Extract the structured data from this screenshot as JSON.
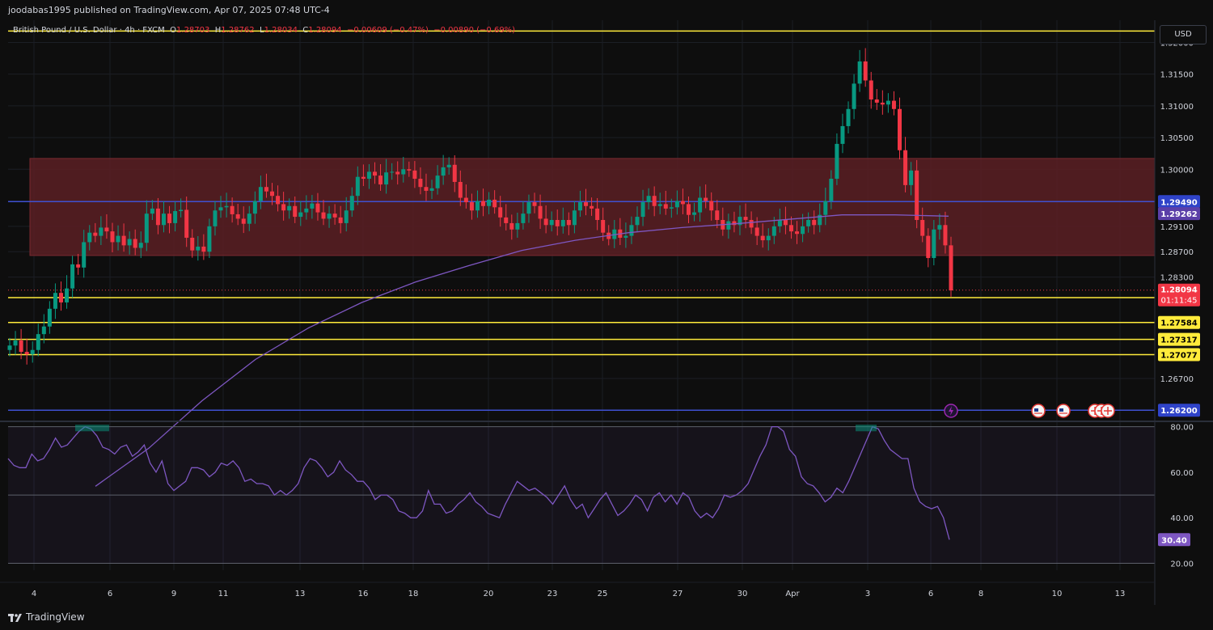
{
  "header": {
    "published_by": "joodabas1995 published on TradingView.com, Apr 07, 2025 07:48 UTC-4"
  },
  "legend": {
    "symbol": "British Pound / U.S. Dollar · 4h · FXCM",
    "open_label": "O",
    "open": "1.28703",
    "high_label": "H",
    "high": "1.28762",
    "low_label": "L",
    "low": "1.28034",
    "close_label": "C",
    "close": "1.28094",
    "change": "−0.00609 (−0.47%)",
    "change2": "−0.00890 (−0.69%)"
  },
  "currency_button": "USD",
  "footer": {
    "brand": "TradingView"
  },
  "colors": {
    "background": "#0e0e0e",
    "up": "#089981",
    "down": "#f23645",
    "zone": "#5a1f23",
    "level": "#ffeb3b",
    "blue_line": "#3f51d1",
    "ma": "#7e57c2",
    "rsi": "#7e57c2"
  },
  "chart_data": {
    "type": "candlestick",
    "symbol": "British Pound / U.S. Dollar",
    "timeframe": "4h",
    "x_ticks": [
      "4",
      "6",
      "9",
      "11",
      "13",
      "16",
      "18",
      "20",
      "23",
      "25",
      "27",
      "30",
      "Apr",
      "3",
      "6",
      "8",
      "10",
      "13"
    ],
    "y_ticks": [
      "1.32000",
      "1.31500",
      "1.31000",
      "1.30500",
      "1.30000",
      "1.29100",
      "1.28700",
      "1.28300",
      "1.26700"
    ],
    "ylim": [
      1.2605,
      1.3235
    ],
    "zone": {
      "from": 1.2864,
      "to": 1.3017
    },
    "horizontal_levels": [
      {
        "value": 1.2949,
        "label": "1.29490",
        "kind": "blue"
      },
      {
        "value": 1.262,
        "label": "1.26200",
        "kind": "blue"
      },
      {
        "value": 1.27976,
        "label": "1.27976",
        "kind": "yellow"
      },
      {
        "value": 1.27584,
        "label": "1.27584",
        "kind": "yellow"
      },
      {
        "value": 1.27317,
        "label": "1.27317",
        "kind": "yellow"
      },
      {
        "value": 1.27077,
        "label": "1.27077",
        "kind": "yellow"
      },
      {
        "value": 1.3218,
        "label": "",
        "kind": "yellow"
      }
    ],
    "price_labels": {
      "ma": "1.29262",
      "last": "1.28094",
      "countdown": "01:11:45"
    },
    "closes": [
      1.2722,
      1.273,
      1.2712,
      1.2708,
      1.2715,
      1.274,
      1.2752,
      1.278,
      1.2805,
      1.279,
      1.2812,
      1.285,
      1.2845,
      1.2885,
      1.29,
      1.2895,
      1.2908,
      1.2902,
      1.2885,
      1.2895,
      1.288,
      1.289,
      1.2876,
      1.2884,
      1.293,
      1.2938,
      1.2912,
      1.293,
      1.2915,
      1.2934,
      1.2936,
      1.2892,
      1.2872,
      1.2878,
      1.287,
      1.291,
      1.2935,
      1.294,
      1.2942,
      1.2929,
      1.2922,
      1.2914,
      1.293,
      1.295,
      1.2972,
      1.2965,
      1.2958,
      1.2945,
      1.2935,
      1.2942,
      1.2925,
      1.2932,
      1.2938,
      1.2946,
      1.2932,
      1.2922,
      1.293,
      1.2924,
      1.2915,
      1.2935,
      1.2958,
      1.2988,
      1.2985,
      1.2996,
      1.299,
      1.2976,
      1.2995,
      1.2996,
      1.2992,
      1.3,
      1.2998,
      1.2985,
      1.2972,
      1.2966,
      1.297,
      1.299,
      1.3003,
      1.3007,
      1.298,
      1.2955,
      1.2948,
      1.2935,
      1.295,
      1.2942,
      1.2952,
      1.294,
      1.2924,
      1.2915,
      1.2905,
      1.2915,
      1.293,
      1.2948,
      1.2942,
      1.2922,
      1.2912,
      1.292,
      1.291,
      1.292,
      1.2912,
      1.2935,
      1.2948,
      1.2942,
      1.2938,
      1.292,
      1.29,
      1.289,
      1.2905,
      1.2892,
      1.2895,
      1.2912,
      1.2925,
      1.2948,
      1.2958,
      1.2942,
      1.2945,
      1.2938,
      1.294,
      1.295,
      1.2945,
      1.2928,
      1.2932,
      1.2955,
      1.295,
      1.2935,
      1.292,
      1.2905,
      1.2918,
      1.2912,
      1.2925,
      1.292,
      1.2908,
      1.2895,
      1.2888,
      1.2895,
      1.291,
      1.292,
      1.2912,
      1.2902,
      1.2898,
      1.291,
      1.292,
      1.2912,
      1.2928,
      1.295,
      1.2985,
      1.304,
      1.3068,
      1.3095,
      1.3135,
      1.317,
      1.314,
      1.311,
      1.3105,
      1.3102,
      1.3108,
      1.3095,
      1.303,
      1.2975,
      1.2998,
      1.292,
      1.2895,
      1.286,
      1.2905,
      1.2912,
      1.288,
      1.2809
    ],
    "ma_values": [
      1.25,
      1.256,
      1.2635,
      1.27,
      1.275,
      1.279,
      1.2822,
      1.2848,
      1.2872,
      1.2888,
      1.29,
      1.2908,
      1.2914,
      1.2921,
      1.2928,
      1.2928,
      1.2926
    ],
    "rsi": {
      "levels": [
        80,
        50
      ],
      "y_ticks": [
        "80.00",
        "60.00",
        "40.00",
        "20.00"
      ],
      "ylim": [
        17,
        82
      ],
      "last": "30.40",
      "values": [
        66,
        63,
        62,
        62,
        68,
        65,
        66,
        70,
        75,
        71,
        72,
        75,
        78,
        80,
        79,
        76,
        71,
        70,
        68,
        71,
        72,
        67,
        69,
        72,
        64,
        60,
        65,
        55,
        52,
        54,
        56,
        62,
        62,
        61,
        58,
        60,
        64,
        63,
        65,
        62,
        56,
        57,
        55,
        55,
        54,
        50,
        52,
        50,
        52,
        55,
        62,
        66,
        65,
        62,
        58,
        60,
        65,
        61,
        59,
        56,
        56,
        53,
        48,
        50,
        50,
        48,
        43,
        42,
        40,
        40,
        43,
        52,
        46,
        46,
        42,
        43,
        46,
        48,
        51,
        47,
        45,
        42,
        41,
        40,
        46,
        51,
        56,
        54,
        52,
        53,
        51,
        49,
        46,
        50,
        54,
        48,
        44,
        46,
        40,
        44,
        48,
        51,
        46,
        41,
        43,
        46,
        50,
        48,
        43,
        49,
        51,
        47,
        50,
        46,
        51,
        49,
        43,
        40,
        42,
        40,
        44,
        50,
        49,
        50,
        52,
        55,
        61,
        67,
        72,
        80,
        80,
        78,
        70,
        67,
        58,
        55,
        54,
        51,
        47,
        49,
        53,
        51,
        56,
        62,
        68,
        74,
        80,
        79,
        74,
        70,
        68,
        66,
        66,
        53,
        47,
        45,
        44,
        45,
        40,
        30.4
      ]
    }
  }
}
